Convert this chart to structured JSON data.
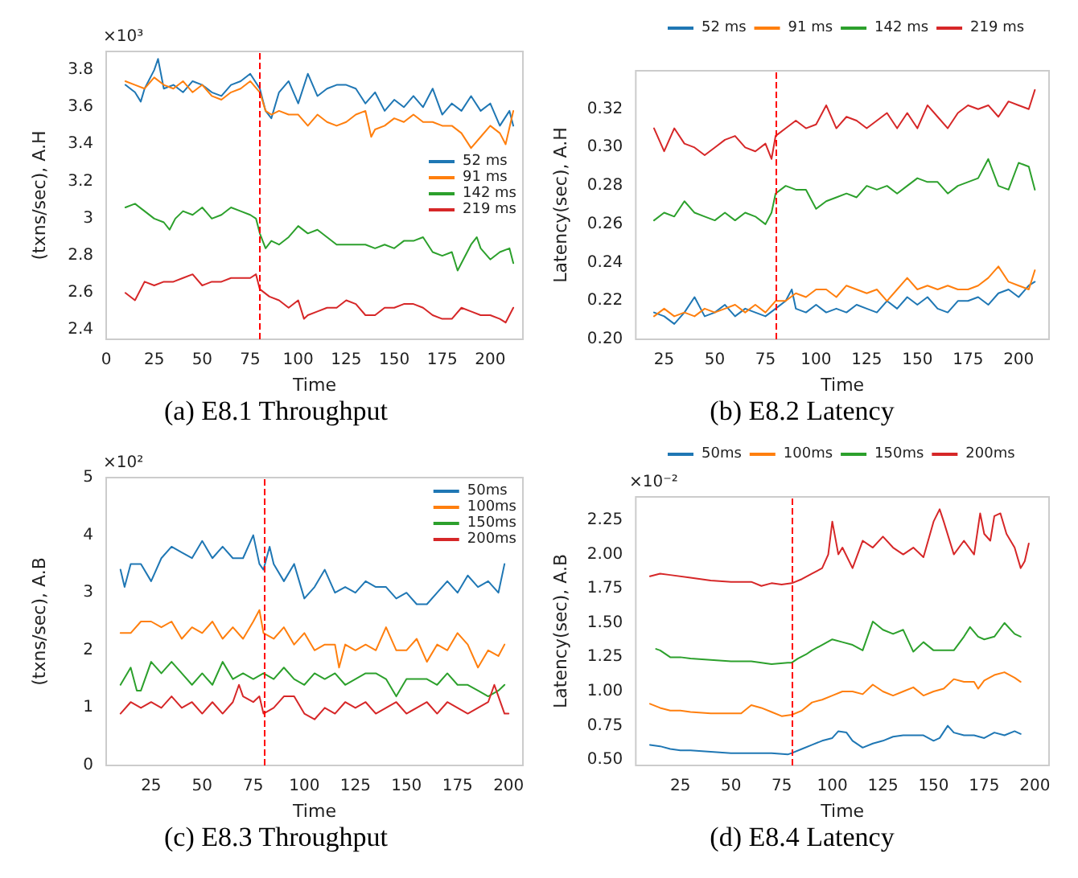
{
  "chart_data": [
    {
      "type": "line",
      "title": "(a) E8.1 Throughput",
      "xlabel": "Time",
      "ylabel": "(txns/sec), A.H",
      "annotations": [
        "×10³"
      ],
      "xlim": [
        0,
        217
      ],
      "xticks": [
        0,
        25,
        50,
        75,
        100,
        125,
        150,
        175,
        200
      ],
      "ylim": [
        2.35,
        3.9
      ],
      "yticks": [
        2.4,
        2.6,
        2.8,
        3.0,
        3.2,
        3.4,
        3.6,
        3.8
      ],
      "legend": "right",
      "ref_lines": [
        {
          "axis": "x",
          "value": 80,
          "color": "#ff0000",
          "line_style": "dashed"
        }
      ],
      "series": [
        {
          "name": "52 ms",
          "color": "#1f77b4",
          "x": [
            10,
            15,
            18,
            20,
            25,
            27,
            30,
            35,
            40,
            45,
            50,
            55,
            60,
            65,
            70,
            75,
            80,
            83,
            86,
            90,
            95,
            100,
            105,
            110,
            115,
            120,
            125,
            130,
            135,
            140,
            145,
            150,
            155,
            160,
            165,
            170,
            175,
            180,
            185,
            190,
            195,
            200,
            205,
            210,
            212
          ],
          "values": [
            3.72,
            3.68,
            3.63,
            3.7,
            3.8,
            3.86,
            3.7,
            3.72,
            3.68,
            3.74,
            3.72,
            3.68,
            3.66,
            3.72,
            3.74,
            3.78,
            3.7,
            3.58,
            3.54,
            3.68,
            3.74,
            3.62,
            3.78,
            3.66,
            3.7,
            3.72,
            3.72,
            3.7,
            3.62,
            3.68,
            3.58,
            3.64,
            3.6,
            3.66,
            3.6,
            3.7,
            3.56,
            3.62,
            3.58,
            3.66,
            3.58,
            3.62,
            3.5,
            3.58,
            3.5
          ]
        },
        {
          "name": "91 ms",
          "color": "#ff7f0e",
          "x": [
            10,
            15,
            20,
            25,
            30,
            35,
            40,
            45,
            50,
            55,
            60,
            65,
            70,
            75,
            80,
            83,
            86,
            90,
            95,
            100,
            105,
            110,
            115,
            120,
            125,
            130,
            135,
            138,
            140,
            145,
            150,
            155,
            160,
            165,
            170,
            175,
            180,
            185,
            190,
            195,
            200,
            205,
            208,
            212
          ],
          "values": [
            3.74,
            3.72,
            3.7,
            3.76,
            3.72,
            3.7,
            3.74,
            3.68,
            3.72,
            3.66,
            3.64,
            3.68,
            3.7,
            3.74,
            3.68,
            3.58,
            3.56,
            3.58,
            3.56,
            3.56,
            3.5,
            3.56,
            3.52,
            3.5,
            3.52,
            3.56,
            3.58,
            3.44,
            3.48,
            3.5,
            3.54,
            3.52,
            3.56,
            3.52,
            3.52,
            3.5,
            3.5,
            3.46,
            3.38,
            3.44,
            3.5,
            3.46,
            3.4,
            3.58
          ]
        },
        {
          "name": "142 ms",
          "color": "#2ca02c",
          "x": [
            10,
            15,
            20,
            25,
            30,
            33,
            36,
            40,
            45,
            50,
            55,
            60,
            65,
            70,
            75,
            78,
            80,
            83,
            86,
            90,
            95,
            100,
            105,
            110,
            115,
            120,
            125,
            130,
            135,
            140,
            145,
            150,
            155,
            160,
            165,
            170,
            175,
            180,
            183,
            185,
            190,
            193,
            195,
            200,
            205,
            210,
            212
          ],
          "values": [
            3.06,
            3.08,
            3.04,
            3.0,
            2.98,
            2.94,
            3.0,
            3.04,
            3.02,
            3.06,
            3.0,
            3.02,
            3.06,
            3.04,
            3.02,
            3.0,
            2.92,
            2.84,
            2.88,
            2.86,
            2.9,
            2.96,
            2.92,
            2.94,
            2.9,
            2.86,
            2.86,
            2.86,
            2.86,
            2.84,
            2.86,
            2.84,
            2.88,
            2.88,
            2.9,
            2.82,
            2.8,
            2.82,
            2.72,
            2.76,
            2.86,
            2.9,
            2.84,
            2.78,
            2.82,
            2.84,
            2.76
          ]
        },
        {
          "name": "219 ms",
          "color": "#d62728",
          "x": [
            10,
            15,
            20,
            25,
            30,
            35,
            40,
            45,
            50,
            55,
            60,
            65,
            70,
            75,
            78,
            80,
            85,
            90,
            95,
            100,
            103,
            105,
            110,
            115,
            120,
            125,
            130,
            135,
            140,
            145,
            150,
            155,
            160,
            165,
            170,
            175,
            180,
            185,
            190,
            195,
            200,
            205,
            208,
            212
          ],
          "values": [
            2.6,
            2.56,
            2.66,
            2.64,
            2.66,
            2.66,
            2.68,
            2.7,
            2.64,
            2.66,
            2.66,
            2.68,
            2.68,
            2.68,
            2.7,
            2.62,
            2.58,
            2.56,
            2.52,
            2.56,
            2.46,
            2.48,
            2.5,
            2.52,
            2.52,
            2.56,
            2.54,
            2.48,
            2.48,
            2.52,
            2.52,
            2.54,
            2.54,
            2.52,
            2.48,
            2.46,
            2.46,
            2.52,
            2.5,
            2.48,
            2.48,
            2.46,
            2.44,
            2.52
          ]
        }
      ]
    },
    {
      "type": "line",
      "title": "(b) E8.2 Latency",
      "xlabel": "Time",
      "ylabel": "Latency(sec), A.H",
      "xlim": [
        11,
        215
      ],
      "xticks": [
        25,
        50,
        75,
        100,
        125,
        150,
        175,
        200
      ],
      "ylim": [
        0.2,
        0.34
      ],
      "yticks": [
        {
          "value": 0.2,
          "label": "0.20"
        },
        {
          "value": 0.22,
          "label": "0.22"
        },
        {
          "value": 0.24,
          "label": "0.24"
        },
        {
          "value": 0.26,
          "label": "0.26"
        },
        {
          "value": 0.28,
          "label": "0.28"
        },
        {
          "value": 0.3,
          "label": "0.30"
        },
        {
          "value": 0.32,
          "label": "0.32"
        }
      ],
      "legend": "top",
      "ref_lines": [
        {
          "axis": "x",
          "value": 80,
          "color": "#ff0000",
          "line_style": "dashed"
        }
      ],
      "series": [
        {
          "name": "52 ms",
          "color": "#1f77b4",
          "x": [
            20,
            25,
            30,
            35,
            40,
            45,
            50,
            55,
            60,
            65,
            70,
            75,
            80,
            85,
            88,
            90,
            95,
            100,
            105,
            110,
            115,
            120,
            125,
            130,
            135,
            140,
            145,
            150,
            155,
            160,
            165,
            170,
            175,
            180,
            185,
            190,
            195,
            200,
            205,
            208
          ],
          "values": [
            0.214,
            0.212,
            0.208,
            0.214,
            0.222,
            0.212,
            0.214,
            0.218,
            0.212,
            0.216,
            0.214,
            0.212,
            0.216,
            0.22,
            0.226,
            0.216,
            0.214,
            0.218,
            0.214,
            0.216,
            0.214,
            0.218,
            0.216,
            0.214,
            0.22,
            0.216,
            0.222,
            0.218,
            0.222,
            0.216,
            0.214,
            0.22,
            0.22,
            0.222,
            0.218,
            0.224,
            0.226,
            0.222,
            0.228,
            0.23
          ]
        },
        {
          "name": "91 ms",
          "color": "#ff7f0e",
          "x": [
            20,
            25,
            30,
            35,
            40,
            45,
            50,
            55,
            60,
            65,
            70,
            75,
            80,
            85,
            90,
            95,
            100,
            105,
            110,
            115,
            120,
            125,
            130,
            135,
            140,
            145,
            150,
            155,
            160,
            165,
            170,
            175,
            180,
            185,
            190,
            195,
            200,
            205,
            208
          ],
          "values": [
            0.212,
            0.216,
            0.212,
            0.214,
            0.212,
            0.216,
            0.214,
            0.216,
            0.218,
            0.214,
            0.218,
            0.214,
            0.22,
            0.22,
            0.224,
            0.222,
            0.226,
            0.226,
            0.222,
            0.228,
            0.226,
            0.224,
            0.226,
            0.22,
            0.226,
            0.232,
            0.226,
            0.228,
            0.226,
            0.228,
            0.226,
            0.226,
            0.228,
            0.232,
            0.238,
            0.23,
            0.228,
            0.226,
            0.236
          ]
        },
        {
          "name": "142 ms",
          "color": "#2ca02c",
          "x": [
            20,
            25,
            30,
            35,
            40,
            45,
            50,
            55,
            60,
            65,
            70,
            75,
            78,
            80,
            85,
            90,
            95,
            100,
            105,
            110,
            115,
            120,
            125,
            130,
            135,
            140,
            145,
            150,
            155,
            160,
            165,
            170,
            175,
            180,
            185,
            190,
            195,
            200,
            205,
            208
          ],
          "values": [
            0.262,
            0.266,
            0.264,
            0.272,
            0.266,
            0.264,
            0.262,
            0.266,
            0.262,
            0.266,
            0.264,
            0.26,
            0.266,
            0.276,
            0.28,
            0.278,
            0.278,
            0.268,
            0.272,
            0.274,
            0.276,
            0.274,
            0.28,
            0.278,
            0.28,
            0.276,
            0.28,
            0.284,
            0.282,
            0.282,
            0.276,
            0.28,
            0.282,
            0.284,
            0.294,
            0.28,
            0.278,
            0.292,
            0.29,
            0.278
          ]
        },
        {
          "name": "219 ms",
          "color": "#d62728",
          "x": [
            20,
            25,
            30,
            35,
            40,
            45,
            50,
            55,
            60,
            65,
            70,
            75,
            78,
            80,
            85,
            90,
            95,
            100,
            105,
            110,
            115,
            120,
            125,
            130,
            135,
            140,
            145,
            150,
            155,
            160,
            165,
            170,
            175,
            180,
            185,
            190,
            195,
            200,
            205,
            208
          ],
          "values": [
            0.31,
            0.298,
            0.31,
            0.302,
            0.3,
            0.296,
            0.3,
            0.304,
            0.306,
            0.3,
            0.298,
            0.302,
            0.294,
            0.306,
            0.31,
            0.314,
            0.31,
            0.312,
            0.322,
            0.31,
            0.316,
            0.314,
            0.31,
            0.314,
            0.318,
            0.31,
            0.318,
            0.31,
            0.322,
            0.316,
            0.31,
            0.318,
            0.322,
            0.32,
            0.322,
            0.316,
            0.324,
            0.322,
            0.32,
            0.33
          ]
        }
      ]
    },
    {
      "type": "line",
      "title": "(c) E8.3 Throughput",
      "xlabel": "Time",
      "ylabel": "(txns/sec), A.B",
      "annotations": [
        "×10²"
      ],
      "xlim": [
        3,
        207
      ],
      "xticks": [
        25,
        50,
        75,
        100,
        125,
        150,
        175,
        200
      ],
      "ylim": [
        0,
        5
      ],
      "yticks": [
        0,
        1,
        2,
        3,
        4,
        5
      ],
      "legend": "top right",
      "ref_lines": [
        {
          "axis": "x",
          "value": 80,
          "color": "#ff0000",
          "line_style": "dashed"
        }
      ],
      "series": [
        {
          "name": "50ms",
          "color": "#1f77b4",
          "x": [
            10,
            12,
            15,
            20,
            25,
            30,
            35,
            40,
            45,
            50,
            55,
            60,
            65,
            70,
            75,
            78,
            80,
            83,
            85,
            90,
            95,
            100,
            105,
            110,
            115,
            120,
            125,
            130,
            135,
            140,
            145,
            150,
            155,
            160,
            165,
            170,
            175,
            180,
            185,
            190,
            195,
            198
          ],
          "values": [
            3.4,
            3.1,
            3.5,
            3.5,
            3.2,
            3.6,
            3.8,
            3.7,
            3.6,
            3.9,
            3.6,
            3.8,
            3.6,
            3.6,
            4.0,
            3.5,
            3.4,
            3.8,
            3.5,
            3.2,
            3.5,
            2.9,
            3.1,
            3.4,
            3.0,
            3.1,
            3.0,
            3.2,
            3.1,
            3.1,
            2.9,
            3.0,
            2.8,
            2.8,
            3.0,
            3.2,
            3.0,
            3.3,
            3.1,
            3.2,
            3.0,
            3.5
          ]
        },
        {
          "name": "100ms",
          "color": "#ff7f0e",
          "x": [
            10,
            15,
            20,
            25,
            30,
            35,
            40,
            45,
            50,
            55,
            60,
            65,
            70,
            75,
            78,
            80,
            85,
            90,
            95,
            100,
            105,
            110,
            115,
            117,
            120,
            125,
            130,
            135,
            140,
            145,
            150,
            155,
            160,
            165,
            170,
            175,
            180,
            185,
            190,
            195,
            198
          ],
          "values": [
            2.3,
            2.3,
            2.5,
            2.5,
            2.4,
            2.5,
            2.2,
            2.4,
            2.3,
            2.5,
            2.2,
            2.4,
            2.2,
            2.5,
            2.7,
            2.3,
            2.2,
            2.4,
            2.1,
            2.3,
            2.0,
            2.1,
            2.1,
            1.7,
            2.1,
            2.0,
            2.1,
            2.0,
            2.4,
            2.0,
            2.0,
            2.2,
            1.8,
            2.1,
            2.0,
            2.3,
            2.1,
            1.7,
            2.0,
            1.9,
            2.1
          ]
        },
        {
          "name": "150ms",
          "color": "#2ca02c",
          "x": [
            10,
            15,
            18,
            20,
            25,
            30,
            35,
            40,
            45,
            50,
            55,
            60,
            65,
            70,
            75,
            80,
            85,
            90,
            95,
            100,
            105,
            110,
            115,
            120,
            125,
            130,
            135,
            140,
            145,
            150,
            155,
            160,
            165,
            170,
            175,
            180,
            185,
            190,
            195,
            198
          ],
          "values": [
            1.4,
            1.7,
            1.3,
            1.3,
            1.8,
            1.6,
            1.8,
            1.6,
            1.4,
            1.6,
            1.4,
            1.8,
            1.5,
            1.6,
            1.5,
            1.6,
            1.5,
            1.7,
            1.5,
            1.4,
            1.6,
            1.5,
            1.6,
            1.4,
            1.5,
            1.6,
            1.6,
            1.5,
            1.2,
            1.5,
            1.5,
            1.5,
            1.4,
            1.6,
            1.4,
            1.4,
            1.3,
            1.2,
            1.3,
            1.4
          ]
        },
        {
          "name": "200ms",
          "color": "#d62728",
          "x": [
            10,
            15,
            20,
            25,
            30,
            35,
            40,
            45,
            50,
            55,
            60,
            65,
            68,
            70,
            75,
            78,
            80,
            85,
            90,
            95,
            100,
            105,
            110,
            115,
            120,
            125,
            130,
            135,
            140,
            145,
            150,
            155,
            160,
            165,
            170,
            175,
            180,
            185,
            190,
            193,
            195,
            198,
            200
          ],
          "values": [
            0.9,
            1.1,
            1.0,
            1.1,
            1.0,
            1.2,
            1.0,
            1.1,
            0.9,
            1.1,
            0.9,
            1.1,
            1.4,
            1.2,
            1.1,
            1.2,
            0.9,
            1.0,
            1.2,
            1.2,
            0.9,
            0.8,
            1.0,
            0.9,
            1.1,
            1.0,
            1.1,
            0.9,
            1.0,
            1.1,
            0.9,
            1.0,
            1.1,
            0.9,
            1.1,
            1.0,
            0.9,
            1.0,
            1.1,
            1.4,
            1.2,
            0.9,
            0.9
          ]
        }
      ]
    },
    {
      "type": "line",
      "title": "(d) E8.4 Latency",
      "xlabel": "Time",
      "ylabel": "Latency(sec), A.B",
      "annotations": [
        "×10⁻²"
      ],
      "xlim": [
        3,
        207
      ],
      "xticks": [
        25,
        50,
        75,
        100,
        125,
        150,
        175,
        200
      ],
      "ylim": [
        0.46,
        2.42
      ],
      "yticks": [
        {
          "value": 0.5,
          "label": "0.50"
        },
        {
          "value": 0.75,
          "label": "0.75"
        },
        {
          "value": 1,
          "label": "1.00"
        },
        {
          "value": 1.25,
          "label": "1.25"
        },
        {
          "value": 1.5,
          "label": "1.50"
        },
        {
          "value": 1.75,
          "label": "1.75"
        },
        {
          "value": 2,
          "label": "2.00"
        },
        {
          "value": 2.25,
          "label": "2.25"
        }
      ],
      "legend": "top",
      "ref_lines": [
        {
          "axis": "x",
          "value": 80,
          "color": "#ff0000",
          "line_style": "dashed"
        }
      ],
      "series": [
        {
          "name": "50ms",
          "color": "#1f77b4",
          "x": [
            10,
            15,
            20,
            25,
            30,
            40,
            50,
            60,
            70,
            78,
            80,
            85,
            90,
            95,
            100,
            103,
            107,
            110,
            115,
            120,
            125,
            130,
            135,
            140,
            145,
            150,
            153,
            157,
            160,
            165,
            170,
            175,
            180,
            185,
            190,
            193
          ],
          "values": [
            0.61,
            0.6,
            0.58,
            0.57,
            0.57,
            0.56,
            0.55,
            0.55,
            0.55,
            0.54,
            0.55,
            0.58,
            0.61,
            0.64,
            0.66,
            0.71,
            0.7,
            0.64,
            0.59,
            0.62,
            0.64,
            0.67,
            0.68,
            0.68,
            0.68,
            0.64,
            0.66,
            0.75,
            0.7,
            0.68,
            0.68,
            0.66,
            0.7,
            0.68,
            0.71,
            0.69
          ]
        },
        {
          "name": "100ms",
          "color": "#ff7f0e",
          "x": [
            10,
            15,
            20,
            25,
            30,
            40,
            50,
            55,
            60,
            65,
            70,
            75,
            80,
            85,
            90,
            95,
            100,
            105,
            110,
            115,
            120,
            125,
            130,
            135,
            140,
            145,
            150,
            155,
            160,
            165,
            170,
            172,
            175,
            180,
            185,
            190,
            193
          ],
          "values": [
            0.91,
            0.88,
            0.86,
            0.86,
            0.85,
            0.84,
            0.84,
            0.84,
            0.9,
            0.88,
            0.85,
            0.82,
            0.83,
            0.86,
            0.92,
            0.94,
            0.97,
            1.0,
            1.0,
            0.98,
            1.05,
            1.0,
            0.97,
            1.0,
            1.03,
            0.97,
            1.0,
            1.02,
            1.09,
            1.07,
            1.07,
            1.02,
            1.08,
            1.12,
            1.14,
            1.1,
            1.07
          ]
        },
        {
          "name": "150ms",
          "color": "#2ca02c",
          "x": [
            13,
            15,
            20,
            25,
            30,
            40,
            50,
            60,
            70,
            78,
            80,
            83,
            87,
            90,
            95,
            100,
            105,
            110,
            115,
            120,
            125,
            130,
            135,
            140,
            145,
            150,
            155,
            160,
            165,
            168,
            172,
            175,
            180,
            185,
            190,
            193
          ],
          "values": [
            1.31,
            1.3,
            1.25,
            1.25,
            1.24,
            1.23,
            1.22,
            1.22,
            1.2,
            1.21,
            1.21,
            1.24,
            1.27,
            1.3,
            1.34,
            1.38,
            1.36,
            1.34,
            1.3,
            1.51,
            1.45,
            1.42,
            1.45,
            1.29,
            1.36,
            1.3,
            1.3,
            1.3,
            1.4,
            1.47,
            1.4,
            1.38,
            1.4,
            1.5,
            1.42,
            1.4
          ]
        },
        {
          "name": "200ms",
          "color": "#d62728",
          "x": [
            10,
            15,
            20,
            30,
            40,
            50,
            60,
            65,
            70,
            75,
            80,
            85,
            90,
            95,
            98,
            100,
            103,
            105,
            110,
            115,
            120,
            125,
            130,
            135,
            140,
            145,
            150,
            153,
            155,
            160,
            165,
            170,
            173,
            175,
            178,
            180,
            183,
            186,
            190,
            193,
            195,
            197
          ],
          "values": [
            1.84,
            1.86,
            1.85,
            1.83,
            1.81,
            1.8,
            1.8,
            1.77,
            1.79,
            1.78,
            1.79,
            1.82,
            1.86,
            1.9,
            2.0,
            2.24,
            2.0,
            2.05,
            1.9,
            2.1,
            2.05,
            2.13,
            2.05,
            2.0,
            2.05,
            1.98,
            2.24,
            2.33,
            2.24,
            2.0,
            2.1,
            2.0,
            2.3,
            2.15,
            2.1,
            2.28,
            2.3,
            2.15,
            2.05,
            1.9,
            1.95,
            2.08
          ]
        }
      ]
    }
  ]
}
